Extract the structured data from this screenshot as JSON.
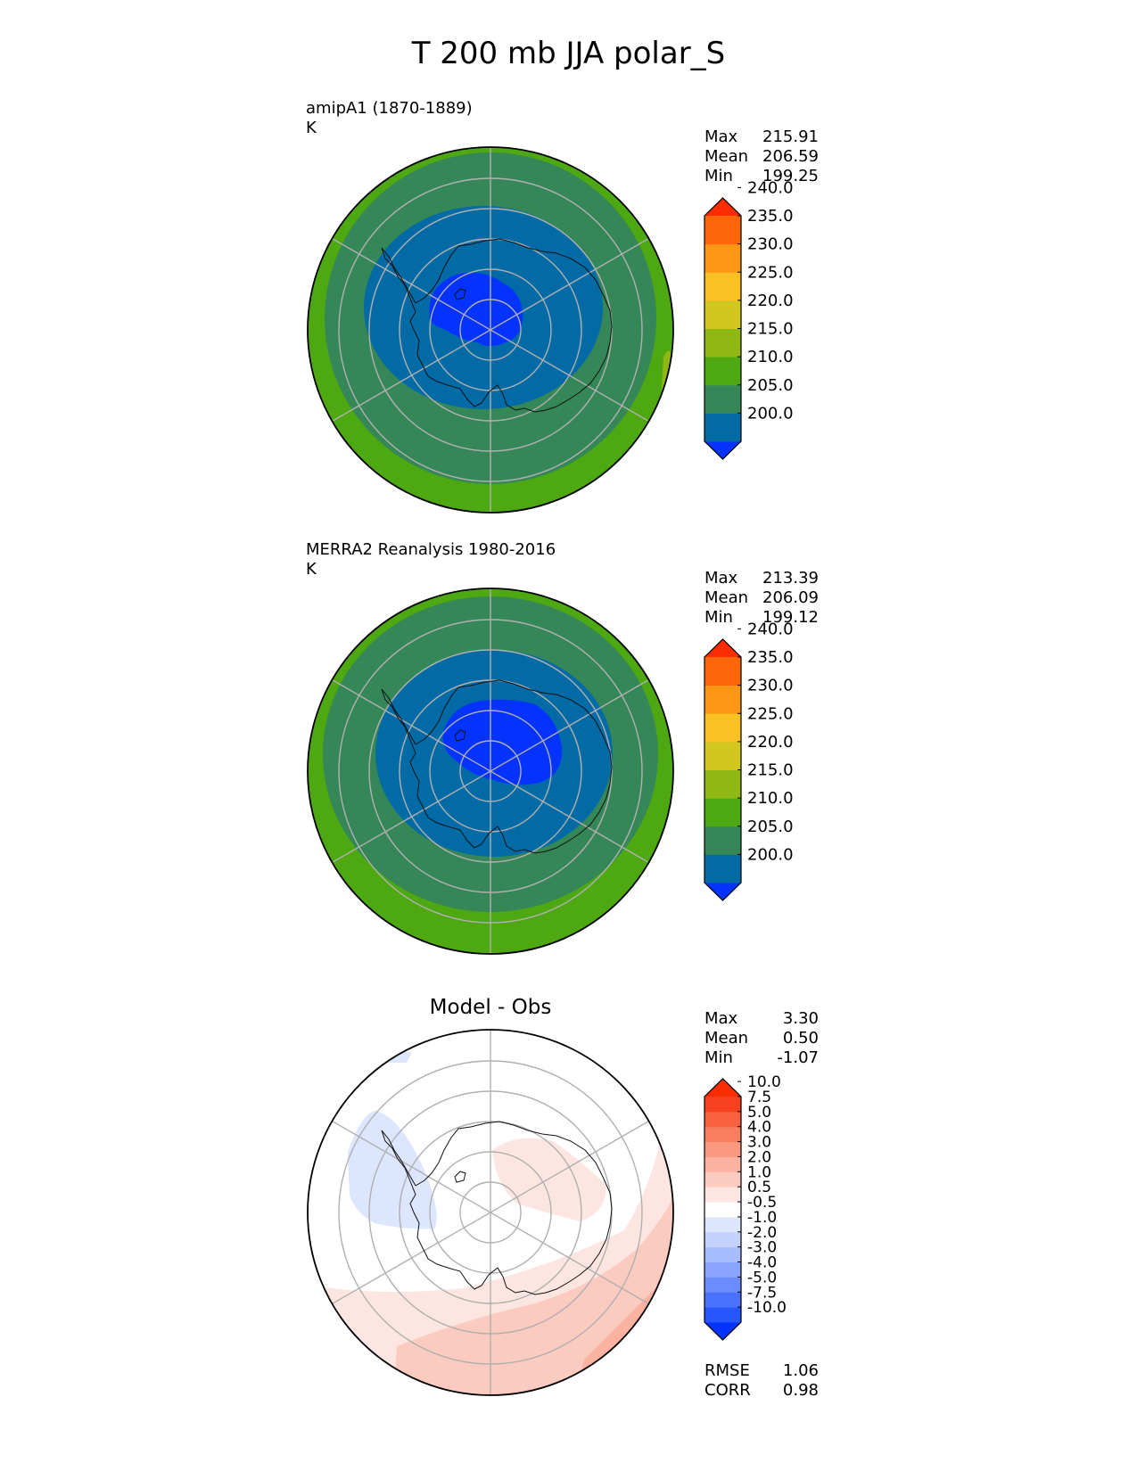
{
  "title": "T 200 mb JJA polar_S",
  "panels": [
    {
      "label": "amipA1 (1870-1889)",
      "units": "K",
      "stats": [
        {
          "name": "Max",
          "value": "215.91"
        },
        {
          "name": "Mean",
          "value": "206.59"
        },
        {
          "name": "Min",
          "value": "199.25"
        }
      ],
      "colorbar": {
        "levels": [
          "200.0",
          "205.0",
          "210.0",
          "215.0",
          "220.0",
          "225.0",
          "230.0",
          "235.0",
          "240.0"
        ],
        "colors": [
          "#0433ff",
          "#026ba6",
          "#368758",
          "#4da811",
          "#91b714",
          "#d1c71d",
          "#fbc024",
          "#fb9714",
          "#fb6608",
          "#fb2c00"
        ]
      }
    },
    {
      "label": "MERRA2 Reanalysis 1980-2016",
      "units": "K",
      "stats": [
        {
          "name": "Max",
          "value": "213.39"
        },
        {
          "name": "Mean",
          "value": "206.09"
        },
        {
          "name": "Min",
          "value": "199.12"
        }
      ],
      "colorbar": {
        "levels": [
          "200.0",
          "205.0",
          "210.0",
          "215.0",
          "220.0",
          "225.0",
          "230.0",
          "235.0",
          "240.0"
        ],
        "colors": [
          "#0433ff",
          "#026ba6",
          "#368758",
          "#4da811",
          "#91b714",
          "#d1c71d",
          "#fbc024",
          "#fb9714",
          "#fb6608",
          "#fb2c00"
        ]
      }
    },
    {
      "title": "Model - Obs",
      "stats": [
        {
          "name": "Max",
          "value": "3.30"
        },
        {
          "name": "Mean",
          "value": "0.50"
        },
        {
          "name": "Min",
          "value": "-1.07"
        }
      ],
      "metrics": [
        {
          "name": "RMSE",
          "value": "1.06"
        },
        {
          "name": "CORR",
          "value": "0.98"
        }
      ],
      "colorbar": {
        "levels": [
          "-10.0",
          "-7.5",
          "-5.0",
          "-4.0",
          "-3.0",
          "-2.0",
          "-1.0",
          "-0.5",
          "0.5",
          "1.0",
          "2.0",
          "3.0",
          "4.0",
          "5.0",
          "7.5",
          "10.0"
        ],
        "colors": [
          "#0433ff",
          "#2756ff",
          "#4a72ff",
          "#6a8cff",
          "#8aa5ff",
          "#a8bdff",
          "#c4d2ff",
          "#dde6ff",
          "#ffffff",
          "#fde6e1",
          "#fccbc0",
          "#fbb2a0",
          "#fa9880",
          "#f97e60",
          "#f8603e",
          "#f64020",
          "#fb2c00"
        ]
      }
    }
  ],
  "chart_data": [
    {
      "type": "heatmap",
      "title": "amipA1 (1870-1889)",
      "units": "K",
      "projection": "polar south stereographic",
      "max": 215.91,
      "mean": 206.59,
      "min": 199.25,
      "contour_levels": [
        200,
        205,
        210,
        215,
        220,
        225,
        230,
        235,
        240
      ]
    },
    {
      "type": "heatmap",
      "title": "MERRA2 Reanalysis 1980-2016",
      "units": "K",
      "projection": "polar south stereographic",
      "max": 213.39,
      "mean": 206.09,
      "min": 199.12,
      "contour_levels": [
        200,
        205,
        210,
        215,
        220,
        225,
        230,
        235,
        240
      ]
    },
    {
      "type": "heatmap",
      "title": "Model - Obs",
      "projection": "polar south stereographic",
      "max": 3.3,
      "mean": 0.5,
      "min": -1.07,
      "rmse": 1.06,
      "corr": 0.98,
      "contour_levels": [
        -10,
        -7.5,
        -5,
        -4,
        -3,
        -2,
        -1,
        -0.5,
        0.5,
        1,
        2,
        3,
        4,
        5,
        7.5,
        10
      ]
    }
  ]
}
